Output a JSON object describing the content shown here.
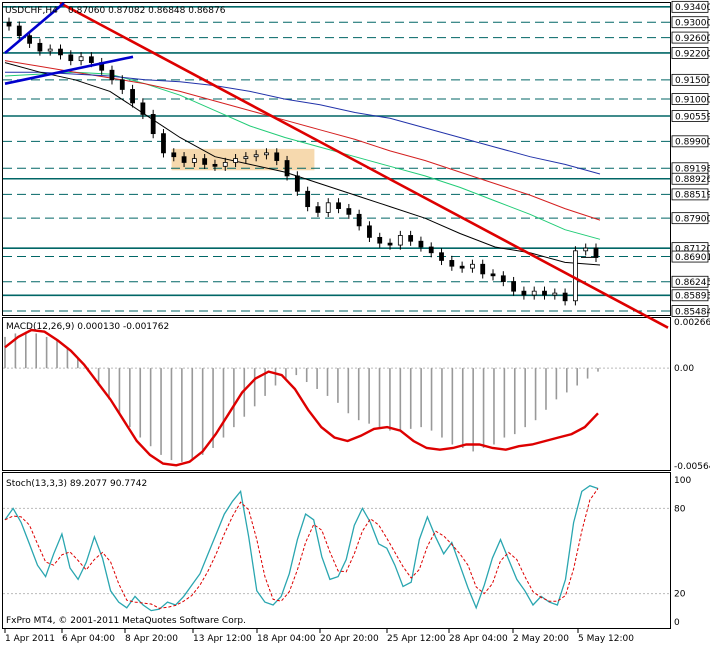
{
  "header": {
    "symbol_timeframe": "USDCHF,H4",
    "ohlc": "0.87060 0.87082 0.86848 0.86876"
  },
  "colors": {
    "background": "#ffffff",
    "frame": "#000000",
    "level_line": "#006666",
    "trendline": "#dd0000",
    "up_channel": "#0000cc",
    "consolidation_box": "#f6d9ae",
    "ma_green": "#22cc77",
    "ma_red": "#d42020",
    "ma_blue": "#2233aa",
    "ma_black": "#000000",
    "macd_signal": "#dd0000",
    "macd_hist": "#999999",
    "stoch_main": "#2aa6b0",
    "stoch_signal": "#dd0000"
  },
  "chart_data": [
    {
      "type": "candlestick",
      "title": "USDCHF,H4",
      "subtitle": "0.87060 0.87082 0.86848 0.86876",
      "ylim": [
        0.8538,
        0.935
      ],
      "price_levels": [
        0.934,
        0.93,
        0.926,
        0.922,
        0.915,
        0.91,
        0.90559,
        0.899,
        0.89198,
        0.88926,
        0.88519,
        0.879,
        0.8712,
        0.86901,
        0.86245,
        0.85893,
        0.85484
      ],
      "current_price": 0.86876,
      "x_tick_labels": [
        "1 Apr 2011",
        "6 Apr 04:00",
        "8 Apr 20:00",
        "13 Apr 12:00",
        "18 Apr 04:00",
        "20 Apr 20:00",
        "25 Apr 12:00",
        "28 Apr 04:00",
        "2 May 20:00",
        "5 May 12:00"
      ],
      "close_path": [
        0.929,
        0.9265,
        0.9245,
        0.9225,
        0.923,
        0.9215,
        0.92,
        0.921,
        0.9195,
        0.9175,
        0.915,
        0.9125,
        0.909,
        0.906,
        0.901,
        0.896,
        0.895,
        0.8935,
        0.8945,
        0.893,
        0.8925,
        0.8935,
        0.8945,
        0.895,
        0.8955,
        0.896,
        0.894,
        0.89,
        0.886,
        0.882,
        0.8805,
        0.883,
        0.8815,
        0.88,
        0.877,
        0.874,
        0.8725,
        0.872,
        0.8745,
        0.873,
        0.8715,
        0.87,
        0.868,
        0.8665,
        0.866,
        0.867,
        0.8645,
        0.864,
        0.8625,
        0.86,
        0.859,
        0.86,
        0.859,
        0.8595,
        0.8575,
        0.8705,
        0.8712,
        0.8688
      ],
      "moving_averages": [
        {
          "color": "green",
          "values": [
            0.916,
            0.9165,
            0.917,
            0.9165,
            0.914,
            0.911,
            0.907,
            0.903,
            0.9,
            0.8975,
            0.895,
            0.8925,
            0.89,
            0.887,
            0.8835,
            0.88,
            0.876,
            0.8735
          ]
        },
        {
          "color": "red",
          "values": [
            0.92,
            0.9185,
            0.917,
            0.9155,
            0.914,
            0.912,
            0.9095,
            0.907,
            0.9045,
            0.902,
            0.8995,
            0.8965,
            0.894,
            0.891,
            0.888,
            0.885,
            0.8815,
            0.8785
          ]
        },
        {
          "color": "blue",
          "values": [
            0.917,
            0.917,
            0.9165,
            0.916,
            0.915,
            0.9145,
            0.9135,
            0.912,
            0.91,
            0.9085,
            0.9065,
            0.905,
            0.9025,
            0.9,
            0.8975,
            0.895,
            0.893,
            0.8905
          ]
        },
        {
          "color": "black",
          "values": [
            0.9195,
            0.917,
            0.915,
            0.912,
            0.906,
            0.9,
            0.895,
            0.893,
            0.891,
            0.888,
            0.885,
            0.882,
            0.879,
            0.875,
            0.8715,
            0.87,
            0.8675,
            0.8668
          ]
        }
      ],
      "trendline": [
        [
          0,
          0.935
        ],
        [
          1,
          0.8505
        ]
      ],
      "consolidation_box": [
        0.8925,
        0.896
      ]
    },
    {
      "type": "macd",
      "label": "MACD(12,26,9) 0.000130 -0.001762",
      "ylim": [
        -0.00564,
        0.00266
      ],
      "y_tick_labels": [
        "0.00266",
        "0.00",
        "-0.00564"
      ],
      "histogram": [
        0.0018,
        0.002,
        0.0021,
        0.002,
        0.0018,
        0.0016,
        0.0012,
        0.0006,
        -0.0002,
        -0.001,
        -0.0018,
        -0.0026,
        -0.0034,
        -0.004,
        -0.0045,
        -0.005,
        -0.0053,
        -0.0054,
        -0.0053,
        -0.005,
        -0.0046,
        -0.004,
        -0.0034,
        -0.0028,
        -0.0022,
        -0.0016,
        -0.001,
        -0.0006,
        -0.0004,
        -0.0008,
        -0.0012,
        -0.0016,
        -0.002,
        -0.0026,
        -0.003,
        -0.0032,
        -0.0035,
        -0.0036,
        -0.0036,
        -0.0035,
        -0.0034,
        -0.0036,
        -0.004,
        -0.0044,
        -0.0046,
        -0.0048,
        -0.0046,
        -0.0044,
        -0.004,
        -0.0038,
        -0.0034,
        -0.003,
        -0.0024,
        -0.0018,
        -0.0014,
        -0.001,
        -0.0006,
        -0.0002
      ],
      "signal": [
        0.0012,
        0.0018,
        0.0022,
        0.0021,
        0.0016,
        0.001,
        0.0002,
        -0.0008,
        -0.0018,
        -0.003,
        -0.0042,
        -0.005,
        -0.0055,
        -0.0056,
        -0.0054,
        -0.0048,
        -0.0038,
        -0.0026,
        -0.0014,
        -0.0006,
        -0.0002,
        -0.0004,
        -0.0012,
        -0.0024,
        -0.0034,
        -0.004,
        -0.0042,
        -0.0039,
        -0.0035,
        -0.0034,
        -0.0036,
        -0.0042,
        -0.0046,
        -0.0047,
        -0.0046,
        -0.0044,
        -0.0044,
        -0.0046,
        -0.0047,
        -0.0045,
        -0.0044,
        -0.0042,
        -0.004,
        -0.0038,
        -0.0034,
        -0.0026
      ]
    },
    {
      "type": "stochastic",
      "label": "Stoch(13,3,3) 89.2077 90.7742",
      "ylim": [
        0,
        100
      ],
      "y_tick_labels": [
        "100",
        "80",
        "20",
        "0"
      ],
      "main": [
        72,
        80,
        70,
        55,
        40,
        32,
        48,
        62,
        38,
        30,
        42,
        60,
        45,
        22,
        14,
        10,
        18,
        12,
        8,
        9,
        14,
        12,
        18,
        26,
        34,
        48,
        62,
        76,
        85,
        92,
        60,
        22,
        14,
        12,
        18,
        34,
        58,
        76,
        72,
        46,
        30,
        32,
        44,
        68,
        80,
        70,
        55,
        52,
        40,
        25,
        28,
        58,
        74,
        60,
        48,
        56,
        40,
        24,
        10,
        26,
        45,
        58,
        44,
        30,
        22,
        12,
        18,
        14,
        12,
        30,
        70,
        92,
        96,
        94
      ]
    }
  ],
  "footer": {
    "copyright": "FxPro MT4, © 2001-2011 MetaQuotes Software Corp."
  }
}
